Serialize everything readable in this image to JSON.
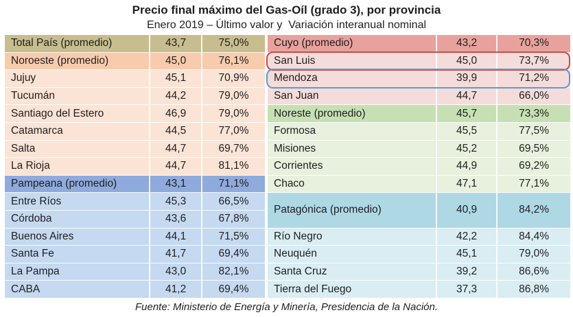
{
  "header": {
    "title": "Precio final máximo del Gas-Oíl (grado 3), por provincia",
    "subtitle": "Enero 2019 – Último valor y  Variación interanual nominal"
  },
  "footer": {
    "source": "Fuente: Ministerio de Energía y Minería, Presidencia de la Nación."
  },
  "colors": {
    "total": "#c8bd8f",
    "noaHeader": "#f8cbad",
    "noa": "#fbe3d5",
    "pampeanaHeader": "#8faadc",
    "pampeana": "#c5d9f1",
    "cuyoHeader": "#e8a29d",
    "cuyo": "#f4dcda",
    "noresteHeader": "#c6e0b4",
    "noreste": "#e7f1de",
    "patagoniaHeader": "#afd8e5",
    "patagonia": "#d9edf3",
    "calloutRed": "#c0504d",
    "calloutBlue": "#5b9bd5",
    "text": "#1f1f1f"
  },
  "chart_data": {
    "type": "table",
    "title": "Precio final máximo del Gas-Oíl (grado 3), por provincia",
    "subtitle": "Enero 2019 – Último valor y  Variación interanual nominal",
    "value_labels": [
      "Último valor",
      "Variación interanual nominal"
    ],
    "left_table": {
      "rows": [
        {
          "name": "Total País (promedio)",
          "value": "43,7",
          "variation": "75,0%",
          "style": "total"
        },
        {
          "name": "Noroeste (promedio)",
          "value": "45,0",
          "variation": "76,1%",
          "style": "noaHeader"
        },
        {
          "name": "Jujuy",
          "value": "45,1",
          "variation": "70,9%",
          "style": "noa"
        },
        {
          "name": "Tucumán",
          "value": "44,2",
          "variation": "79,0%",
          "style": "noa"
        },
        {
          "name": "Santiago del Estero",
          "value": "46,9",
          "variation": "79,0%",
          "style": "noa"
        },
        {
          "name": "Catamarca",
          "value": "44,5",
          "variation": "77,0%",
          "style": "noa"
        },
        {
          "name": "Salta",
          "value": "44,7",
          "variation": "69,7%",
          "style": "noa"
        },
        {
          "name": "La Rioja",
          "value": "44,7",
          "variation": "81,1%",
          "style": "noa"
        },
        {
          "name": "Pampeana (promedio)",
          "value": "43,1",
          "variation": "71,1%",
          "style": "pampeanaHeader"
        },
        {
          "name": "Entre Ríos",
          "value": "45,3",
          "variation": "66,5%",
          "style": "pampeana"
        },
        {
          "name": "Córdoba",
          "value": "43,6",
          "variation": "67,8%",
          "style": "pampeana"
        },
        {
          "name": "Buenos Aires",
          "value": "44,1",
          "variation": "71,5%",
          "style": "pampeana"
        },
        {
          "name": "Santa Fe",
          "value": "41,7",
          "variation": "69,4%",
          "style": "pampeana"
        },
        {
          "name": "La Pampa",
          "value": "43,0",
          "variation": "82,1%",
          "style": "pampeana"
        },
        {
          "name": "CABA",
          "value": "41,2",
          "variation": "69,4%",
          "style": "pampeana"
        }
      ]
    },
    "right_table": {
      "rows": [
        {
          "name": "Cuyo (promedio)",
          "value": "43,2",
          "variation": "70,3%",
          "style": "cuyoHeader"
        },
        {
          "name": "San Luis",
          "value": "45,0",
          "variation": "73,7%",
          "style": "cuyo",
          "callout": "red"
        },
        {
          "name": "Mendoza",
          "value": "39,9",
          "variation": "71,2%",
          "style": "cuyo",
          "callout": "blue"
        },
        {
          "name": "San Juan",
          "value": "44,7",
          "variation": "66,0%",
          "style": "cuyo"
        },
        {
          "name": "Noreste (promedio)",
          "value": "45,7",
          "variation": "73,3%",
          "style": "noresteHeader"
        },
        {
          "name": "Formosa",
          "value": "45,5",
          "variation": "77,5%",
          "style": "noreste"
        },
        {
          "name": "Misiones",
          "value": "45,2",
          "variation": "69,5%",
          "style": "noreste"
        },
        {
          "name": "Corrientes",
          "value": "44,9",
          "variation": "69,2%",
          "style": "noreste"
        },
        {
          "name": "Chaco",
          "value": "47,1",
          "variation": "77,1%",
          "style": "noreste"
        },
        {
          "name": "Patagónica (promedio)",
          "value": "40,9",
          "variation": "84,2%",
          "style": "patagoniaHeader",
          "tall": true
        },
        {
          "name": "Río Negro",
          "value": "42,2",
          "variation": "84,4%",
          "style": "patagonia"
        },
        {
          "name": "Neuquén",
          "value": "45,1",
          "variation": "79,0%",
          "style": "patagonia"
        },
        {
          "name": "Santa Cruz",
          "value": "39,2",
          "variation": "86,6%",
          "style": "patagonia"
        },
        {
          "name": "Tierra del Fuego",
          "value": "37,3",
          "variation": "86,8%",
          "style": "patagonia"
        }
      ]
    }
  }
}
